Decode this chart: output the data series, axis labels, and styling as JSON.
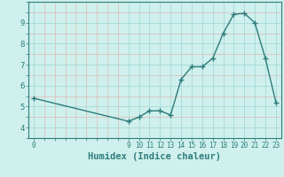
{
  "x": [
    0,
    9,
    10,
    11,
    12,
    13,
    14,
    15,
    16,
    17,
    18,
    19,
    20,
    21,
    22,
    23
  ],
  "y": [
    5.4,
    4.3,
    4.5,
    4.8,
    4.8,
    4.6,
    6.3,
    6.9,
    6.9,
    7.3,
    8.5,
    9.4,
    9.45,
    9.0,
    7.3,
    5.2
  ],
  "line_color": "#2d7d7d",
  "bg_color": "#cff0ec",
  "grid_color_major": "#aadddd",
  "grid_color_minor": "#e0b8b8",
  "xlabel": "Humidex (Indice chaleur)",
  "ylim": [
    3.5,
    9.9
  ],
  "xlim": [
    -0.5,
    23.5
  ],
  "yticks": [
    4,
    5,
    6,
    7,
    8,
    9
  ],
  "xticks": [
    0,
    9,
    10,
    11,
    12,
    13,
    14,
    15,
    16,
    17,
    18,
    19,
    20,
    21,
    22,
    23
  ],
  "label_fontsize": 7.5
}
